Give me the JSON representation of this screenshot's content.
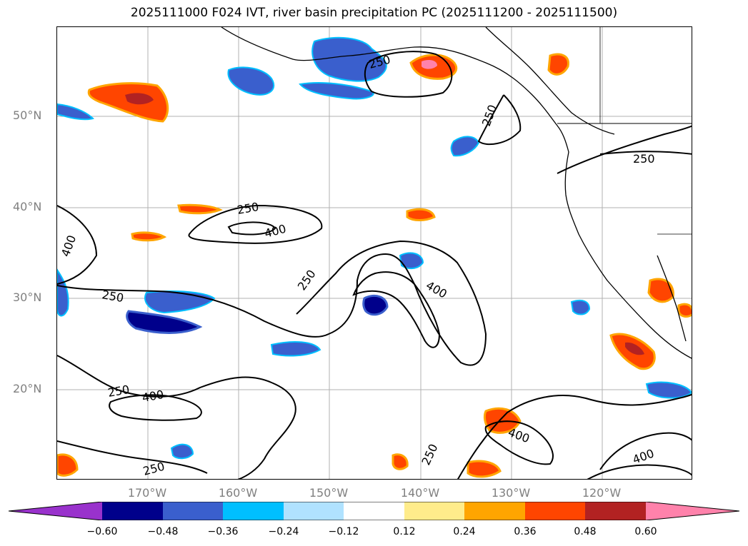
{
  "title": "2025111000 F024 IVT, river basin precipitation PC (2025111200 - 2025111500)",
  "map": {
    "lat_labels": [
      "50°N",
      "40°N",
      "30°N",
      "20°N"
    ],
    "lon_labels": [
      "170°W",
      "160°W",
      "150°W",
      "140°W",
      "130°W",
      "120°W"
    ],
    "contour_labels": [
      "250",
      "250",
      "250",
      "400",
      "250",
      "250",
      "400",
      "250",
      "250",
      "400",
      "400",
      "400",
      "250",
      "250",
      "400"
    ],
    "contour_levels": [
      250,
      400
    ],
    "colors": {
      "contour": "#000000",
      "grid": "#b0b0b0",
      "coast": "#000000"
    }
  },
  "colorbar": {
    "ticks": [
      "−0.60",
      "−0.48",
      "−0.36",
      "−0.24",
      "−0.12",
      "0.12",
      "0.24",
      "0.36",
      "0.48",
      "0.60"
    ],
    "colors": [
      "#9932cc",
      "#00008b",
      "#3a5fcd",
      "#00bfff",
      "#b0e2ff",
      "#ffffff",
      "#ffec8b",
      "#ffa500",
      "#ff4500",
      "#b22222",
      "#ff82ab"
    ]
  }
}
